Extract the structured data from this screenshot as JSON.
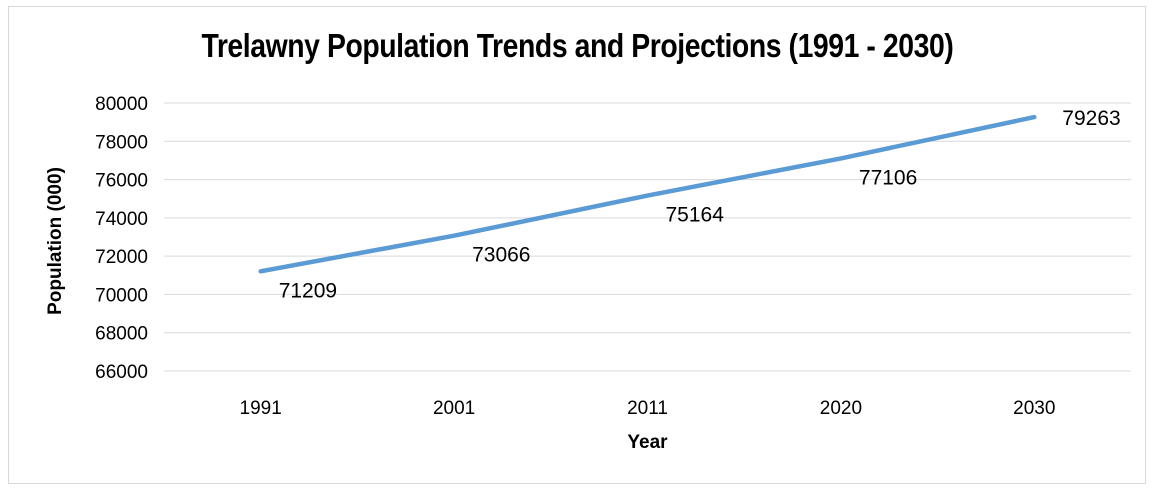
{
  "chart_data": {
    "type": "line",
    "title": "Trelawny Population Trends and Projections (1991 - 2030)",
    "xlabel": "Year",
    "ylabel": "Population (000)",
    "categories": [
      "1991",
      "2001",
      "2011",
      "2020",
      "2030"
    ],
    "series": [
      {
        "values": [
          71209,
          73066,
          75164,
          77106,
          79263
        ],
        "color": "#5b9bd5"
      }
    ],
    "data_labels": [
      "71209",
      "73066",
      "75164",
      "77106",
      "79263"
    ],
    "ylim": [
      66000,
      80000
    ],
    "yticks": [
      "66000",
      "68000",
      "70000",
      "72000",
      "74000",
      "76000",
      "78000",
      "80000"
    ],
    "grid": true,
    "legend": "none",
    "gridline_color": "#d9d9d9"
  }
}
